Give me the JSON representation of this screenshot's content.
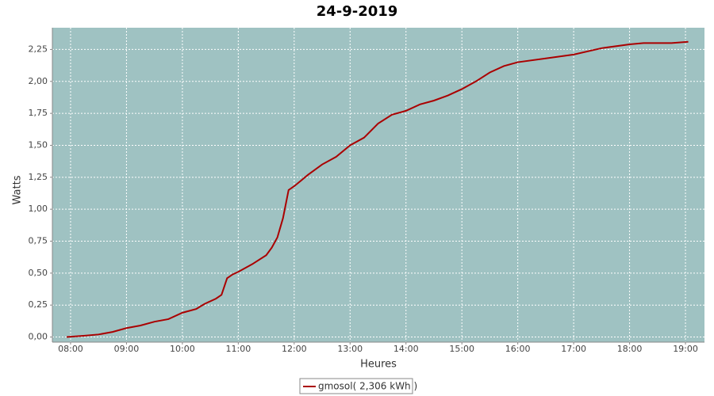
{
  "chart_data": {
    "type": "line",
    "title": "24-9-2019",
    "x_label": "Heures",
    "y_label": "Watts",
    "x": [
      7.93,
      8.25,
      8.5,
      8.75,
      9.0,
      9.25,
      9.5,
      9.75,
      10.0,
      10.25,
      10.4,
      10.6,
      10.7,
      10.8,
      10.9,
      11.0,
      11.25,
      11.5,
      11.6,
      11.7,
      11.8,
      11.9,
      12.0,
      12.25,
      12.5,
      12.75,
      13.0,
      13.25,
      13.5,
      13.75,
      14.0,
      14.25,
      14.5,
      14.75,
      15.0,
      15.25,
      15.5,
      15.75,
      16.0,
      16.5,
      17.0,
      17.5,
      18.0,
      18.25,
      18.5,
      18.75,
      19.05
    ],
    "series": [
      {
        "name": "gmosol( 2,306 kWh )",
        "color": "#aa0000",
        "values": [
          0,
          0.01,
          0.02,
          0.04,
          0.07,
          0.09,
          0.12,
          0.14,
          0.19,
          0.22,
          0.26,
          0.3,
          0.33,
          0.46,
          0.49,
          0.51,
          0.57,
          0.64,
          0.7,
          0.78,
          0.93,
          1.15,
          1.18,
          1.27,
          1.35,
          1.41,
          1.5,
          1.56,
          1.67,
          1.74,
          1.77,
          1.82,
          1.85,
          1.89,
          1.94,
          2.0,
          2.07,
          2.12,
          2.15,
          2.18,
          2.21,
          2.26,
          2.29,
          2.3,
          2.3,
          2.3,
          2.31
        ]
      }
    ],
    "xlim": [
      7.674,
      19.34
    ],
    "xticks": [
      {
        "value": 8,
        "label": "08:00"
      },
      {
        "value": 9,
        "label": "09:00"
      },
      {
        "value": 10,
        "label": "10:00"
      },
      {
        "value": 11,
        "label": "11:00"
      },
      {
        "value": 12,
        "label": "12:00"
      },
      {
        "value": 13,
        "label": "13:00"
      },
      {
        "value": 14,
        "label": "14:00"
      },
      {
        "value": 15,
        "label": "15:00"
      },
      {
        "value": 16,
        "label": "16:00"
      },
      {
        "value": 17,
        "label": "17:00"
      },
      {
        "value": 18,
        "label": "18:00"
      },
      {
        "value": 19,
        "label": "19:00"
      }
    ],
    "ylim": [
      -0.04,
      2.42
    ],
    "yticks": [
      {
        "value": 0,
        "label": "0,00"
      },
      {
        "value": 0.25,
        "label": "0,25"
      },
      {
        "value": 0.5,
        "label": "0,50"
      },
      {
        "value": 0.75,
        "label": "0,75"
      },
      {
        "value": 1,
        "label": "1,00"
      },
      {
        "value": 1.25,
        "label": "1,25"
      },
      {
        "value": 1.5,
        "label": "1,50"
      },
      {
        "value": 1.75,
        "label": "1,75"
      },
      {
        "value": 2,
        "label": "2,00"
      },
      {
        "value": 2.25,
        "label": "2,25"
      }
    ],
    "grid": true,
    "plot_background": "#9fc2c2"
  }
}
